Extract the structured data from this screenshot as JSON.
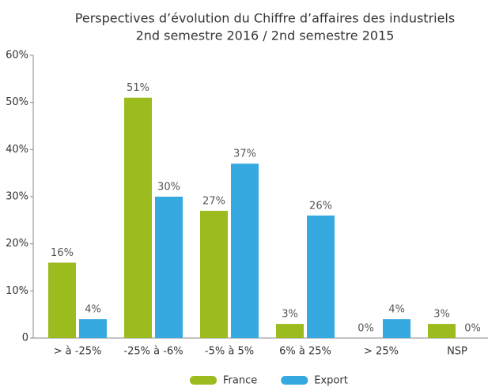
{
  "chart_data": {
    "type": "bar",
    "title": "Perspectives d’évolution du Chiffre d’affaires des industriels",
    "subtitle": "2nd semestre 2016 / 2nd semestre 2015",
    "categories": [
      "> à -25%",
      "-25% à -6%",
      "-5% à 5%",
      "6% à 25%",
      "> 25%",
      "NSP"
    ],
    "series": [
      {
        "name": "France",
        "color": "#9bbb1f",
        "values": [
          16,
          51,
          27,
          3,
          0,
          3
        ],
        "value_labels": [
          "16%",
          "51%",
          "27%",
          "3%",
          "0%",
          "3%"
        ]
      },
      {
        "name": "Export",
        "color": "#36a9e1",
        "values": [
          4,
          30,
          37,
          26,
          4,
          0
        ],
        "value_labels": [
          "4%",
          "30%",
          "37%",
          "26%",
          "4%",
          "0%"
        ]
      }
    ],
    "ylim": [
      0,
      60
    ],
    "yticks": [
      0,
      {
        "value": 10,
        "label": "10%"
      },
      {
        "value": 20,
        "label": "20%"
      },
      {
        "value": 30,
        "label": "30%"
      },
      {
        "value": 40,
        "label": "40%"
      },
      {
        "value": 50,
        "label": "50%"
      },
      {
        "value": 60,
        "label": "60%"
      }
    ],
    "grid": false,
    "legend": "bottom"
  }
}
